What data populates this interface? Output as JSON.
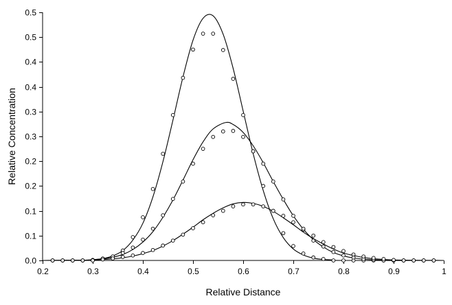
{
  "chart_data": {
    "type": "scatter",
    "title": "",
    "xlabel": "Relative Distance",
    "ylabel": "Relative Concentration",
    "xlim": [
      0.2,
      1.0
    ],
    "ylim": [
      0,
      0.5
    ],
    "grid": false,
    "x_ticks": [
      0.2,
      0.3,
      0.4,
      0.5,
      0.6,
      0.7,
      0.8,
      0.9,
      1.0
    ],
    "x_tick_labels": [
      "0.2",
      "0.3",
      "0.4",
      "0.5",
      "0.6",
      "0.7",
      "0.8",
      "0.9",
      "1"
    ],
    "y_ticks": [
      0,
      0.05,
      0.1,
      0.15,
      0.2,
      0.25,
      0.3,
      0.35,
      0.4,
      0.45,
      0.5
    ],
    "y_tick_labels": [
      "0.0",
      "0.1",
      "0.1",
      "0.2",
      "0.2",
      "0.3",
      "0.3",
      "0.4",
      "0.4",
      "0.5",
      "0.5"
    ],
    "colors": {
      "line": "#000000",
      "marker": "#000000",
      "background": "#ffffff"
    },
    "marker": "open-circle",
    "series": [
      {
        "points": [
          [
            0.22,
            0
          ],
          [
            0.24,
            0
          ],
          [
            0.26,
            0
          ],
          [
            0.28,
            0
          ],
          [
            0.3,
            0
          ],
          [
            0.32,
            0.003
          ],
          [
            0.34,
            0.008
          ],
          [
            0.36,
            0.02
          ],
          [
            0.38,
            0.047
          ],
          [
            0.4,
            0.087
          ],
          [
            0.42,
            0.144
          ],
          [
            0.44,
            0.215
          ],
          [
            0.46,
            0.293
          ],
          [
            0.48,
            0.368
          ],
          [
            0.5,
            0.425
          ],
          [
            0.52,
            0.457
          ],
          [
            0.54,
            0.457
          ],
          [
            0.56,
            0.424
          ],
          [
            0.58,
            0.366
          ],
          [
            0.6,
            0.293
          ],
          [
            0.62,
            0.22
          ],
          [
            0.64,
            0.15
          ],
          [
            0.66,
            0.1
          ],
          [
            0.68,
            0.055
          ],
          [
            0.7,
            0.029
          ],
          [
            0.72,
            0.014
          ],
          [
            0.74,
            0.006
          ],
          [
            0.76,
            0.003
          ],
          [
            0.78,
            0
          ],
          [
            0.8,
            0
          ],
          [
            0.82,
            0
          ],
          [
            0.84,
            0
          ],
          [
            0.86,
            0
          ],
          [
            0.88,
            0
          ],
          [
            0.9,
            0
          ],
          [
            0.92,
            0
          ],
          [
            0.94,
            0
          ],
          [
            0.96,
            0
          ],
          [
            0.98,
            0
          ]
        ],
        "curve": [
          [
            0.2,
            0
          ],
          [
            0.28,
            0.0005
          ],
          [
            0.3,
            0.0015
          ],
          [
            0.32,
            0.0038
          ],
          [
            0.34,
            0.0092
          ],
          [
            0.36,
            0.02
          ],
          [
            0.38,
            0.041
          ],
          [
            0.4,
            0.075
          ],
          [
            0.42,
            0.128
          ],
          [
            0.44,
            0.199
          ],
          [
            0.46,
            0.283
          ],
          [
            0.48,
            0.37
          ],
          [
            0.5,
            0.444
          ],
          [
            0.52,
            0.488
          ],
          [
            0.54,
            0.493
          ],
          [
            0.56,
            0.456
          ],
          [
            0.58,
            0.387
          ],
          [
            0.6,
            0.301
          ],
          [
            0.62,
            0.215
          ],
          [
            0.64,
            0.141
          ],
          [
            0.66,
            0.084
          ],
          [
            0.68,
            0.046
          ],
          [
            0.7,
            0.023
          ],
          [
            0.72,
            0.011
          ],
          [
            0.74,
            0.0046
          ],
          [
            0.76,
            0.002
          ],
          [
            0.78,
            0.001
          ],
          [
            0.8,
            0
          ],
          [
            1.0,
            0
          ]
        ]
      },
      {
        "points": [
          [
            0.22,
            0
          ],
          [
            0.24,
            0
          ],
          [
            0.26,
            0
          ],
          [
            0.28,
            0
          ],
          [
            0.3,
            0.001
          ],
          [
            0.32,
            0.004
          ],
          [
            0.34,
            0.008
          ],
          [
            0.36,
            0.015
          ],
          [
            0.38,
            0.026
          ],
          [
            0.4,
            0.042
          ],
          [
            0.42,
            0.064
          ],
          [
            0.44,
            0.091
          ],
          [
            0.46,
            0.124
          ],
          [
            0.48,
            0.159
          ],
          [
            0.5,
            0.195
          ],
          [
            0.52,
            0.225
          ],
          [
            0.54,
            0.249
          ],
          [
            0.56,
            0.26
          ],
          [
            0.58,
            0.261
          ],
          [
            0.6,
            0.249
          ],
          [
            0.62,
            0.22
          ],
          [
            0.64,
            0.195
          ],
          [
            0.66,
            0.159
          ],
          [
            0.68,
            0.123
          ],
          [
            0.7,
            0.09
          ],
          [
            0.72,
            0.062
          ],
          [
            0.74,
            0.04
          ],
          [
            0.76,
            0.028
          ],
          [
            0.78,
            0.017
          ],
          [
            0.8,
            0.01
          ],
          [
            0.82,
            0.006
          ],
          [
            0.84,
            0.003
          ],
          [
            0.86,
            0.002
          ],
          [
            0.88,
            0
          ],
          [
            0.9,
            0
          ],
          [
            0.92,
            0
          ],
          [
            0.94,
            0
          ],
          [
            0.96,
            0
          ],
          [
            0.98,
            0
          ]
        ],
        "curve": [
          [
            0.2,
            0
          ],
          [
            0.28,
            0.0006
          ],
          [
            0.3,
            0.0015
          ],
          [
            0.32,
            0.0032
          ],
          [
            0.34,
            0.0065
          ],
          [
            0.36,
            0.012
          ],
          [
            0.38,
            0.022
          ],
          [
            0.4,
            0.037
          ],
          [
            0.42,
            0.058
          ],
          [
            0.44,
            0.087
          ],
          [
            0.46,
            0.122
          ],
          [
            0.48,
            0.162
          ],
          [
            0.5,
            0.203
          ],
          [
            0.52,
            0.239
          ],
          [
            0.54,
            0.265
          ],
          [
            0.565,
            0.278
          ],
          [
            0.58,
            0.274
          ],
          [
            0.6,
            0.258
          ],
          [
            0.62,
            0.231
          ],
          [
            0.64,
            0.197
          ],
          [
            0.66,
            0.159
          ],
          [
            0.68,
            0.123
          ],
          [
            0.7,
            0.09
          ],
          [
            0.72,
            0.063
          ],
          [
            0.74,
            0.042
          ],
          [
            0.76,
            0.027
          ],
          [
            0.78,
            0.016
          ],
          [
            0.8,
            0.0092
          ],
          [
            0.82,
            0.005
          ],
          [
            0.84,
            0.0026
          ],
          [
            0.86,
            0.0013
          ],
          [
            0.88,
            0.0006
          ],
          [
            0.9,
            0.0002
          ],
          [
            1.0,
            0
          ]
        ]
      },
      {
        "points": [
          [
            0.22,
            0
          ],
          [
            0.24,
            0
          ],
          [
            0.26,
            0
          ],
          [
            0.28,
            0
          ],
          [
            0.3,
            0
          ],
          [
            0.32,
            0.002
          ],
          [
            0.34,
            0.004
          ],
          [
            0.36,
            0.007
          ],
          [
            0.38,
            0.01
          ],
          [
            0.4,
            0.015
          ],
          [
            0.42,
            0.021
          ],
          [
            0.44,
            0.03
          ],
          [
            0.46,
            0.04
          ],
          [
            0.48,
            0.052
          ],
          [
            0.5,
            0.065
          ],
          [
            0.52,
            0.077
          ],
          [
            0.54,
            0.091
          ],
          [
            0.56,
            0.1
          ],
          [
            0.58,
            0.109
          ],
          [
            0.6,
            0.113
          ],
          [
            0.62,
            0.113
          ],
          [
            0.64,
            0.109
          ],
          [
            0.66,
            0.1
          ],
          [
            0.68,
            0.09
          ],
          [
            0.7,
            0.077
          ],
          [
            0.72,
            0.064
          ],
          [
            0.74,
            0.05
          ],
          [
            0.76,
            0.037
          ],
          [
            0.78,
            0.027
          ],
          [
            0.8,
            0.019
          ],
          [
            0.82,
            0.012
          ],
          [
            0.84,
            0.008
          ],
          [
            0.86,
            0.005
          ],
          [
            0.88,
            0.003
          ],
          [
            0.9,
            0.001
          ],
          [
            0.92,
            0
          ],
          [
            0.94,
            0
          ],
          [
            0.96,
            0
          ],
          [
            0.98,
            0
          ]
        ],
        "curve": [
          [
            0.2,
            0
          ],
          [
            0.28,
            0.0005
          ],
          [
            0.3,
            0.001
          ],
          [
            0.32,
            0.0018
          ],
          [
            0.34,
            0.0032
          ],
          [
            0.36,
            0.0054
          ],
          [
            0.38,
            0.0088
          ],
          [
            0.4,
            0.0137
          ],
          [
            0.42,
            0.02
          ],
          [
            0.44,
            0.029
          ],
          [
            0.46,
            0.04
          ],
          [
            0.48,
            0.053
          ],
          [
            0.5,
            0.067
          ],
          [
            0.52,
            0.082
          ],
          [
            0.54,
            0.095
          ],
          [
            0.56,
            0.106
          ],
          [
            0.58,
            0.114
          ],
          [
            0.6,
            0.117
          ],
          [
            0.62,
            0.115
          ],
          [
            0.64,
            0.109
          ],
          [
            0.66,
            0.099
          ],
          [
            0.68,
            0.086
          ],
          [
            0.7,
            0.072
          ],
          [
            0.72,
            0.057
          ],
          [
            0.74,
            0.044
          ],
          [
            0.76,
            0.033
          ],
          [
            0.78,
            0.023
          ],
          [
            0.8,
            0.015
          ],
          [
            0.82,
            0.01
          ],
          [
            0.84,
            0.006
          ],
          [
            0.86,
            0.0035
          ],
          [
            0.88,
            0.002
          ],
          [
            0.9,
            0.001
          ],
          [
            0.94,
            0.0003
          ],
          [
            1.0,
            0
          ]
        ]
      }
    ]
  }
}
